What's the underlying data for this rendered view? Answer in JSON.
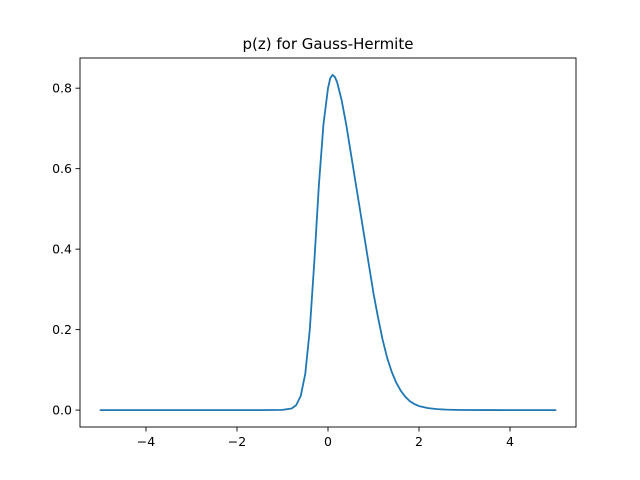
{
  "chart_data": {
    "type": "line",
    "title": "p(z) for Gauss-Hermite",
    "xlabel": "",
    "ylabel": "",
    "xlim": [
      -5.45,
      5.45
    ],
    "ylim": [
      -0.042,
      0.875
    ],
    "xticks": [
      -4,
      -2,
      0,
      2,
      4
    ],
    "xtick_labels": [
      "−4",
      "−2",
      "0",
      "2",
      "4"
    ],
    "yticks": [
      0.0,
      0.2,
      0.4,
      0.6,
      0.8
    ],
    "ytick_labels": [
      "0.0",
      "0.2",
      "0.4",
      "0.6",
      "0.8"
    ],
    "grid": false,
    "legend": "none",
    "series": [
      {
        "color": "#1f77b4",
        "x": [
          -5,
          -3,
          -1.5,
          -1.0,
          -0.8,
          -0.7,
          -0.6,
          -0.5,
          -0.4,
          -0.3,
          -0.2,
          -0.1,
          0.0,
          0.05,
          0.1,
          0.15,
          0.2,
          0.3,
          0.4,
          0.5,
          0.6,
          0.7,
          0.8,
          0.9,
          1.0,
          1.1,
          1.2,
          1.3,
          1.4,
          1.5,
          1.6,
          1.7,
          1.8,
          1.9,
          2.0,
          2.2,
          2.4,
          2.6,
          2.8,
          3.0,
          3.5,
          4.0,
          5.0
        ],
        "y": [
          0.0,
          0.0,
          0.0,
          0.0005,
          0.004,
          0.012,
          0.035,
          0.09,
          0.2,
          0.37,
          0.56,
          0.71,
          0.8,
          0.825,
          0.833,
          0.828,
          0.815,
          0.77,
          0.71,
          0.64,
          0.57,
          0.5,
          0.43,
          0.36,
          0.29,
          0.23,
          0.175,
          0.13,
          0.095,
          0.068,
          0.048,
          0.033,
          0.022,
          0.015,
          0.01,
          0.005,
          0.0025,
          0.0012,
          0.0006,
          0.0003,
          0.0001,
          0.0,
          0.0
        ]
      }
    ]
  }
}
